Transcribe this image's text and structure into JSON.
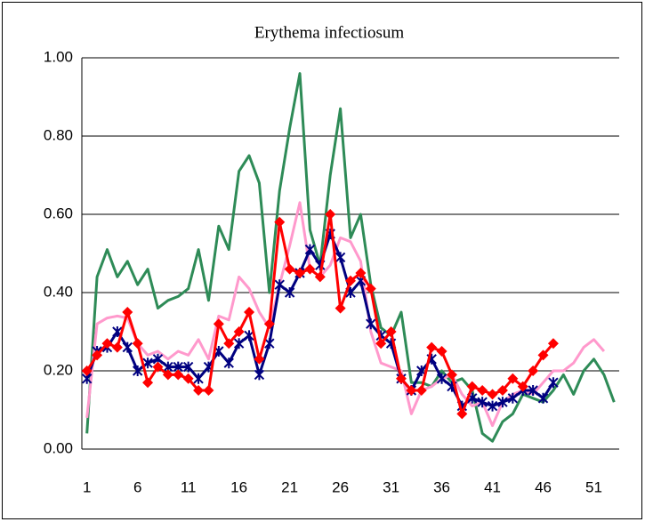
{
  "chart_data": {
    "type": "line",
    "title": "Erythema infectiosum",
    "categories": [
      1,
      null,
      null,
      null,
      null,
      6,
      null,
      null,
      null,
      null,
      11,
      null,
      null,
      null,
      null,
      16,
      null,
      null,
      null,
      null,
      21,
      null,
      null,
      null,
      null,
      26,
      null,
      null,
      null,
      null,
      31,
      null,
      null,
      null,
      null,
      36,
      null,
      null,
      null,
      null,
      41,
      null,
      null,
      null,
      null,
      46,
      null,
      null,
      null,
      null,
      51,
      null,
      null
    ],
    "ylim": [
      0,
      1
    ],
    "yticks": [
      {
        "value": 0,
        "label": "0.00"
      },
      {
        "value": 0.2,
        "label": "0.20"
      },
      {
        "value": 0.4,
        "label": "0.40"
      },
      {
        "value": 0.6,
        "label": "0.60"
      },
      {
        "value": 0.8,
        "label": "0.80"
      },
      {
        "value": 1,
        "label": "1.00"
      }
    ],
    "grid": true,
    "series": [
      {
        "color": "#2e8b57",
        "marker": "none",
        "values": [
          0.04,
          0.44,
          0.51,
          0.44,
          0.48,
          0.42,
          0.46,
          0.36,
          0.38,
          0.39,
          0.41,
          0.51,
          0.38,
          0.57,
          0.51,
          0.71,
          0.75,
          0.68,
          0.4,
          0.66,
          0.82,
          0.96,
          0.56,
          0.47,
          0.7,
          0.87,
          0.54,
          0.6,
          0.42,
          0.31,
          0.29,
          0.35,
          0.17,
          0.17,
          0.16,
          0.2,
          0.17,
          0.18,
          0.15,
          0.04,
          0.02,
          0.07,
          0.09,
          0.14,
          0.13,
          0.12,
          0.15,
          0.19,
          0.14,
          0.2,
          0.23,
          0.19,
          0.12
        ]
      },
      {
        "color": "#ff99cc",
        "marker": "none",
        "values": [
          0.08,
          0.32,
          0.335,
          0.34,
          0.335,
          0.27,
          0.24,
          0.25,
          0.23,
          0.25,
          0.24,
          0.28,
          0.23,
          0.34,
          0.33,
          0.44,
          0.41,
          0.35,
          0.31,
          0.42,
          0.52,
          0.63,
          0.46,
          0.44,
          0.47,
          0.54,
          0.53,
          0.48,
          0.3,
          0.22,
          0.21,
          0.2,
          0.09,
          0.15,
          0.16,
          0.18,
          0.19,
          0.14,
          0.11,
          0.12,
          0.06,
          0.12,
          0.14,
          0.15,
          0.14,
          0.17,
          0.2,
          0.2,
          0.22,
          0.26,
          0.28,
          0.25,
          null
        ]
      },
      {
        "color": "#000080",
        "marker": "star",
        "values": [
          0.18,
          0.25,
          0.26,
          0.3,
          0.26,
          0.2,
          0.22,
          0.23,
          0.21,
          0.21,
          0.21,
          0.18,
          0.21,
          0.25,
          0.22,
          0.27,
          0.29,
          0.19,
          0.27,
          0.42,
          0.4,
          0.45,
          0.51,
          0.47,
          0.55,
          0.49,
          0.4,
          0.43,
          0.32,
          0.29,
          0.27,
          0.18,
          0.15,
          0.2,
          0.23,
          0.18,
          0.16,
          0.11,
          0.13,
          0.12,
          0.11,
          0.12,
          0.13,
          0.15,
          0.15,
          0.13,
          0.17,
          null,
          null,
          null,
          null,
          null,
          null
        ]
      },
      {
        "color": "#ff0000",
        "marker": "diamond",
        "values": [
          0.2,
          0.24,
          0.27,
          0.26,
          0.35,
          0.27,
          0.17,
          0.21,
          0.19,
          0.19,
          0.18,
          0.15,
          0.15,
          0.32,
          0.27,
          0.3,
          0.35,
          0.23,
          0.32,
          0.58,
          0.46,
          0.45,
          0.46,
          0.44,
          0.6,
          0.36,
          0.43,
          0.45,
          0.41,
          0.27,
          0.3,
          0.18,
          0.15,
          0.15,
          0.26,
          0.25,
          0.19,
          0.09,
          0.16,
          0.15,
          0.14,
          0.15,
          0.18,
          0.16,
          0.2,
          0.24,
          0.27,
          null,
          null,
          null,
          null,
          null,
          null
        ]
      }
    ]
  }
}
